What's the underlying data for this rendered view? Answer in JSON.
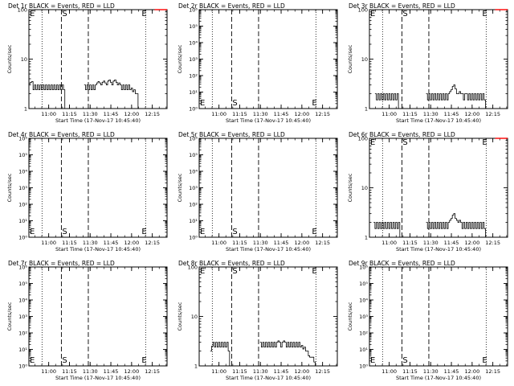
{
  "colors": {
    "events": "#000000",
    "lld": "#ff0000",
    "axes": "#000000",
    "background": "#ffffff"
  },
  "x_axis": {
    "tick_labels": [
      "11:00",
      "11:15",
      "11:30",
      "11:45",
      "12:00",
      "12:15"
    ],
    "tick_minutes_after_start": [
      14.33,
      29.33,
      44.33,
      59.33,
      74.33,
      89.33
    ],
    "range_minutes_after_start": [
      0,
      100
    ],
    "xlabel": "Start Time (17-Nov-17 10:45:40)"
  },
  "markers": {
    "dotted_minutes_after_start": [
      9.5,
      84.5
    ],
    "dashed_minutes_after_start": [
      23.5,
      43.0
    ],
    "S_minutes_after_start": 23.5,
    "E_minutes_after_start": 81.0,
    "S_label": "S",
    "E_label": "E"
  },
  "chart_data": [
    {
      "type": "line",
      "title": "Det 1r BLACK = Events, RED = LLD",
      "ylabel": "Counts/sec",
      "yscale": "log",
      "ylim": [
        1,
        100
      ],
      "ytick_labels": [
        "1",
        "10",
        "100"
      ],
      "ytick_values": [
        1,
        10,
        100
      ],
      "series": [
        {
          "color": "#000000",
          "x": [
            0,
            1,
            2,
            3,
            4,
            5,
            6,
            7,
            8,
            9,
            10,
            11,
            12,
            13,
            14,
            15,
            16,
            17,
            18,
            19,
            20,
            21,
            22,
            23,
            24,
            25,
            26,
            27,
            28,
            29,
            30,
            31,
            32,
            33,
            34,
            35,
            36,
            37,
            38,
            39,
            40,
            41,
            42,
            43,
            44,
            45,
            46,
            47,
            48,
            49,
            50,
            51,
            52,
            53,
            54,
            55,
            56,
            57,
            58,
            59,
            60,
            61,
            62,
            63,
            64,
            65,
            66,
            67,
            68,
            69,
            70,
            71,
            72,
            73,
            74,
            75,
            76,
            77,
            78,
            79,
            80,
            81,
            82,
            83,
            84,
            85,
            86,
            87,
            88,
            89,
            90,
            91,
            92,
            93,
            94,
            95,
            96,
            97,
            98,
            99,
            100
          ],
          "y": [
            3.2,
            3.4,
            3.5,
            2.4,
            3.0,
            2.4,
            3.0,
            2.4,
            3.0,
            2.4,
            3.0,
            2.4,
            3.0,
            2.4,
            3.0,
            2.4,
            3.0,
            2.4,
            3.0,
            2.4,
            3.0,
            2.4,
            3.0,
            2.4,
            3.0,
            2.4,
            1.0,
            1.0,
            1.0,
            1.0,
            1.0,
            1.0,
            1.0,
            1.0,
            1.0,
            1.0,
            1.0,
            1.0,
            1.0,
            1.0,
            1.0,
            1.0,
            1.0,
            1.0,
            1.0,
            1.0,
            1.0,
            1.0,
            1.0,
            1.0,
            1.0,
            1.0,
            1.0,
            1.0,
            1.0,
            1.0,
            1.0,
            1.0,
            1.0,
            1.0,
            1.0,
            1.0,
            1.0,
            1.0,
            1.0,
            1.0,
            1.0,
            1.0,
            1.0,
            1.0,
            1.0,
            1.0,
            1.0,
            1.0,
            1.0,
            1.0,
            1.0,
            1.0,
            1.0,
            1.0,
            1.0,
            1.0,
            1.0,
            1.0,
            1.0,
            1.0,
            1.0,
            1.0,
            1.0,
            1.0,
            1.0,
            1.0,
            1.0,
            1.0,
            1.0,
            1.0,
            1.0,
            1.0,
            1.0,
            1.0,
            1.0
          ]
        },
        {
          "color": "#000000",
          "x": [
            40,
            41,
            42,
            43,
            44,
            45,
            46,
            47,
            48,
            49,
            50,
            51,
            52,
            53,
            54,
            55,
            56,
            57,
            58,
            59,
            60,
            61,
            62,
            63,
            64,
            65,
            66,
            67,
            68,
            69,
            70,
            71,
            72,
            73,
            74,
            75,
            76,
            77,
            78,
            79,
            80
          ],
          "y": [
            3.0,
            2.4,
            3.0,
            2.4,
            3.0,
            2.4,
            3.0,
            2.4,
            3.0,
            3.3,
            3.5,
            3.3,
            3.0,
            3.4,
            3.6,
            3.3,
            3.0,
            3.6,
            3.8,
            3.4,
            3.0,
            3.6,
            3.8,
            3.4,
            3.0,
            3.3,
            3.0,
            2.4,
            3.0,
            2.4,
            3.0,
            2.4,
            3.0,
            2.4,
            2.6,
            2.2,
            2.4,
            2.0,
            2.0,
            1.0,
            1.0
          ]
        },
        {
          "color": "#ff0000",
          "x": [
            91,
            92,
            93,
            94,
            95,
            96,
            97,
            98,
            99,
            100
          ],
          "y": [
            100,
            100,
            100,
            100,
            100,
            100,
            100,
            100,
            100,
            100
          ]
        }
      ]
    },
    {
      "type": "line",
      "title": "Det 2r BLACK = Events, RED = LLD",
      "ylabel": "Counts/sec",
      "yscale": "log",
      "ylim": [
        1,
        1000000
      ],
      "ytick_labels": [
        "10⁰",
        "10¹",
        "10²",
        "10³",
        "10⁴",
        "10⁵",
        "10⁶"
      ],
      "ytick_values": [
        1,
        10,
        100,
        1000,
        10000,
        100000,
        1000000
      ],
      "series": []
    },
    {
      "type": "line",
      "title": "Det 3r BLACK = Events, RED = LLD",
      "ylabel": "Counts/sec",
      "yscale": "log",
      "ylim": [
        1,
        100
      ],
      "ytick_labels": [
        "1",
        "10",
        "100"
      ],
      "ytick_values": [
        1,
        10,
        100
      ],
      "series": [
        {
          "color": "#000000",
          "x": [
            4,
            5,
            6,
            7,
            8,
            9,
            10,
            11,
            12,
            13,
            14,
            15,
            16,
            17,
            18,
            19,
            20,
            21
          ],
          "y": [
            2.0,
            1.5,
            2.0,
            1.5,
            2.0,
            1.5,
            2.0,
            1.5,
            2.0,
            1.5,
            2.0,
            1.5,
            2.0,
            1.5,
            2.0,
            1.5,
            2.0,
            1.0
          ]
        },
        {
          "color": "#000000",
          "x": [
            41,
            42,
            43,
            44,
            45,
            46,
            47,
            48,
            49,
            50,
            51,
            52,
            53,
            54,
            55,
            56,
            57,
            58,
            59,
            60,
            61,
            62,
            63,
            64,
            65,
            66,
            67,
            68,
            69,
            70,
            71,
            72,
            73,
            74,
            75,
            76,
            77,
            78,
            79,
            80,
            81,
            82,
            83,
            84
          ],
          "y": [
            2.0,
            1.5,
            2.0,
            1.5,
            2.0,
            1.5,
            2.0,
            1.5,
            2.0,
            1.5,
            2.0,
            1.5,
            2.0,
            1.5,
            2.0,
            1.5,
            2.0,
            2.2,
            2.4,
            2.8,
            3.0,
            2.5,
            2.0,
            2.0,
            2.2,
            2.0,
            2.0,
            1.5,
            2.0,
            2.0,
            1.5,
            2.0,
            1.5,
            2.0,
            1.5,
            2.0,
            1.5,
            2.0,
            1.5,
            2.0,
            1.5,
            2.0,
            1.5,
            1.0
          ]
        },
        {
          "color": "#ff0000",
          "x": [
            91,
            92,
            93,
            94,
            95,
            96,
            97,
            98,
            99,
            100
          ],
          "y": [
            100,
            100,
            100,
            100,
            100,
            100,
            100,
            100,
            100,
            100
          ]
        }
      ]
    },
    {
      "type": "line",
      "title": "Det 4r BLACK = Events, RED = LLD",
      "ylabel": "Counts/sec",
      "yscale": "log",
      "ylim": [
        1,
        1000000
      ],
      "ytick_labels": [
        "10⁰",
        "10¹",
        "10²",
        "10³",
        "10⁴",
        "10⁵",
        "10⁶"
      ],
      "ytick_values": [
        1,
        10,
        100,
        1000,
        10000,
        100000,
        1000000
      ],
      "series": []
    },
    {
      "type": "line",
      "title": "Det 5r BLACK = Events, RED = LLD",
      "ylabel": "Counts/sec",
      "yscale": "log",
      "ylim": [
        1,
        1000000
      ],
      "ytick_labels": [
        "10⁰",
        "10¹",
        "10²",
        "10³",
        "10⁴",
        "10⁵",
        "10⁶"
      ],
      "ytick_values": [
        1,
        10,
        100,
        1000,
        10000,
        100000,
        1000000
      ],
      "series": []
    },
    {
      "type": "line",
      "title": "Det 6r BLACK = Events, RED = LLD",
      "ylabel": "Counts/sec",
      "yscale": "log",
      "ylim": [
        1,
        100
      ],
      "ytick_labels": [
        "1",
        "10",
        "100"
      ],
      "ytick_values": [
        1,
        10,
        100
      ],
      "series": [
        {
          "color": "#000000",
          "x": [
            3,
            4,
            5,
            6,
            7,
            8,
            9,
            10,
            11,
            12,
            13,
            14,
            15,
            16,
            17,
            18,
            19,
            20,
            21,
            22
          ],
          "y": [
            2.0,
            1.5,
            2.0,
            1.5,
            2.0,
            1.5,
            2.0,
            1.5,
            2.0,
            1.5,
            2.0,
            1.5,
            2.0,
            1.5,
            2.0,
            1.5,
            2.0,
            1.5,
            2.0,
            1.0
          ]
        },
        {
          "color": "#000000",
          "x": [
            41,
            42,
            43,
            44,
            45,
            46,
            47,
            48,
            49,
            50,
            51,
            52,
            53,
            54,
            55,
            56,
            57,
            58,
            59,
            60,
            61,
            62,
            63,
            64,
            65,
            66,
            67,
            68,
            69,
            70,
            71,
            72,
            73,
            74,
            75,
            76,
            77,
            78,
            79,
            80,
            81,
            82,
            83,
            84
          ],
          "y": [
            2.0,
            1.5,
            2.0,
            1.5,
            2.0,
            1.5,
            2.0,
            1.5,
            2.0,
            1.5,
            2.0,
            1.5,
            2.0,
            1.5,
            2.0,
            1.5,
            2.0,
            2.2,
            2.4,
            2.8,
            3.0,
            2.4,
            2.2,
            2.0,
            2.2,
            2.0,
            1.5,
            2.0,
            1.5,
            2.0,
            1.5,
            2.0,
            1.5,
            2.0,
            1.5,
            2.0,
            1.5,
            2.0,
            1.5,
            2.0,
            1.5,
            2.0,
            1.5,
            1.0
          ]
        },
        {
          "color": "#ff0000",
          "x": [
            91,
            92,
            93,
            94,
            95,
            96,
            97,
            98,
            99,
            100
          ],
          "y": [
            100,
            100,
            100,
            100,
            100,
            100,
            100,
            100,
            100,
            100
          ]
        }
      ]
    },
    {
      "type": "line",
      "title": "Det 7r BLACK = Events, RED = LLD",
      "ylabel": "Counts/sec",
      "yscale": "log",
      "ylim": [
        1,
        1000000
      ],
      "ytick_labels": [
        "10⁰",
        "10¹",
        "10²",
        "10³",
        "10⁴",
        "10⁵",
        "10⁶"
      ],
      "ytick_values": [
        1,
        10,
        100,
        1000,
        10000,
        100000,
        1000000
      ],
      "series": []
    },
    {
      "type": "line",
      "title": "Det 8r BLACK = Events, RED = LLD",
      "ylabel": "Counts/sec",
      "yscale": "log",
      "ylim": [
        1,
        100
      ],
      "ytick_labels": [
        "1",
        "10",
        "100"
      ],
      "ytick_values": [
        1,
        10,
        100
      ],
      "series": [
        {
          "color": "#000000",
          "x": [
            8,
            9,
            10,
            11,
            12,
            13,
            14,
            15,
            16,
            17,
            18,
            19,
            20,
            21,
            22
          ],
          "y": [
            2.0,
            2.5,
            3.0,
            2.4,
            3.0,
            2.4,
            3.0,
            2.4,
            3.0,
            2.4,
            3.0,
            2.4,
            3.0,
            2.0,
            1.0
          ]
        },
        {
          "color": "#000000",
          "x": [
            44,
            45,
            46,
            47,
            48,
            49,
            50,
            51,
            52,
            53,
            54,
            55,
            56,
            57,
            58,
            59,
            60,
            61,
            62,
            63,
            64,
            65,
            66,
            67,
            68,
            69,
            70,
            71,
            72,
            73,
            74,
            75,
            76,
            77,
            78,
            79,
            80,
            81,
            82,
            83,
            84
          ],
          "y": [
            3.0,
            2.4,
            3.0,
            2.4,
            3.0,
            2.4,
            3.0,
            2.4,
            3.0,
            2.4,
            3.0,
            2.4,
            3.0,
            3.2,
            3.0,
            2.4,
            3.0,
            3.2,
            3.0,
            2.4,
            3.0,
            2.4,
            3.0,
            2.4,
            3.0,
            2.4,
            3.0,
            2.4,
            3.0,
            2.4,
            2.6,
            2.2,
            2.4,
            2.0,
            2.0,
            1.6,
            1.5,
            1.5,
            1.5,
            1.2,
            1.0
          ]
        }
      ]
    },
    {
      "type": "line",
      "title": "Det 9r BLACK = Events, RED = LLD",
      "ylabel": "Counts/sec",
      "yscale": "log",
      "ylim": [
        1,
        1000000
      ],
      "ytick_labels": [
        "10⁰",
        "10¹",
        "10²",
        "10³",
        "10⁴",
        "10⁵",
        "10⁶"
      ],
      "ytick_values": [
        1,
        10,
        100,
        1000,
        10000,
        100000,
        1000000
      ],
      "series": []
    }
  ]
}
